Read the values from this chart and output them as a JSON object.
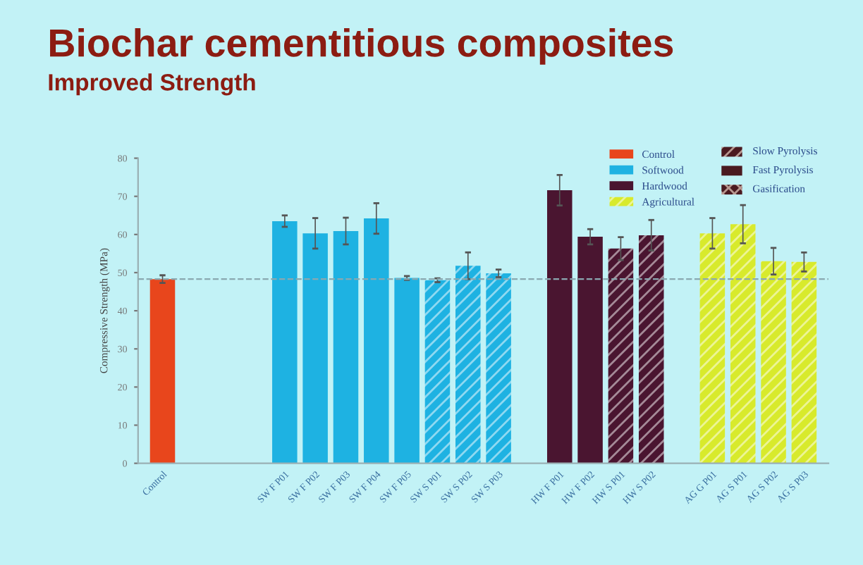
{
  "chart_data": {
    "type": "bar",
    "title": "Biochar cementitious composites",
    "subtitle": "Improved Strength",
    "ylabel": "Compressive Strength (MPa)",
    "categories": [
      "Control",
      null,
      null,
      null,
      "SW F P01",
      "SW F P02",
      "SW F P03",
      "SW F P04",
      "SW F P05",
      "SW S P01",
      "SW S P02",
      "SW S P03",
      null,
      "HW F P01",
      "HW F P02",
      "HW S P01",
      "HW S P02",
      null,
      "AG G P01",
      "AG S P01",
      "AG S P02",
      "AG S P03"
    ],
    "series": [
      {
        "name": "Control",
        "color": "#e8461c",
        "values": [
          48.3,
          null,
          null,
          null,
          null,
          null,
          null,
          null,
          null,
          null,
          null,
          null,
          null,
          null,
          null,
          null,
          null,
          null,
          null,
          null,
          null,
          null
        ],
        "errors": [
          1,
          null,
          null,
          null,
          null,
          null,
          null,
          null,
          null,
          null,
          null,
          null,
          null,
          null,
          null,
          null,
          null,
          null,
          null,
          null,
          null,
          null
        ]
      },
      {
        "name": "Softwood",
        "color": "#1eb2e2",
        "values": [
          null,
          null,
          null,
          null,
          63.5,
          60.3,
          60.9,
          64.2,
          48.6,
          null,
          null,
          null,
          null,
          null,
          null,
          null,
          null,
          null,
          null,
          null,
          null,
          null
        ],
        "errors": [
          null,
          null,
          null,
          null,
          1.5,
          4,
          3.5,
          4,
          0.5,
          null,
          null,
          null,
          null,
          null,
          null,
          null,
          null,
          null,
          null,
          null,
          null,
          null
        ]
      },
      {
        "color": "#1eb2e2",
        "line_style": "dashed",
        "values": [
          null,
          null,
          null,
          null,
          null,
          null,
          null,
          null,
          null,
          48.0,
          51.8,
          49.8,
          null,
          null,
          null,
          null,
          null,
          null,
          null,
          null,
          null,
          null
        ],
        "errors": [
          null,
          null,
          null,
          null,
          null,
          null,
          null,
          null,
          null,
          0.5,
          3.5,
          1,
          null,
          null,
          null,
          null,
          null,
          null,
          null,
          null,
          null,
          null
        ]
      },
      {
        "name": "Hardwood",
        "color": "#4a1530",
        "values": [
          null,
          null,
          null,
          null,
          null,
          null,
          null,
          null,
          null,
          null,
          null,
          null,
          null,
          71.6,
          59.4,
          null,
          null,
          null,
          null,
          null,
          null,
          null
        ],
        "errors": [
          null,
          null,
          null,
          null,
          null,
          null,
          null,
          null,
          null,
          null,
          null,
          null,
          null,
          4,
          2,
          null,
          null,
          null,
          null,
          null,
          null,
          null
        ]
      },
      {
        "color": "#4a1530",
        "line_style": "dashed",
        "values": [
          null,
          null,
          null,
          null,
          null,
          null,
          null,
          null,
          null,
          null,
          null,
          null,
          null,
          null,
          null,
          56.3,
          59.8,
          null,
          null,
          null,
          null,
          null
        ],
        "errors": [
          null,
          null,
          null,
          null,
          null,
          null,
          null,
          null,
          null,
          null,
          null,
          null,
          null,
          null,
          null,
          3,
          4,
          null,
          null,
          null,
          null,
          null
        ]
      },
      {
        "name": "Agricultural",
        "color": "#d8ea2c",
        "line_style": "dashed",
        "values": [
          null,
          null,
          null,
          null,
          null,
          null,
          null,
          null,
          null,
          null,
          null,
          null,
          null,
          null,
          null,
          null,
          null,
          null,
          60.3,
          62.7,
          53.0,
          52.8
        ],
        "errors": [
          null,
          null,
          null,
          null,
          null,
          null,
          null,
          null,
          null,
          null,
          null,
          null,
          null,
          null,
          null,
          null,
          null,
          null,
          4,
          5,
          3.5,
          2.5
        ]
      }
    ],
    "annotations": [
      "Slow Pyrolysis",
      "Fast Pyrolysis",
      "Gasification"
    ],
    "ref_lines": [
      {
        "axis": "y",
        "value": 48.3,
        "color": "#8aa8b0",
        "line_style": "dashed"
      }
    ],
    "ylim": [
      0,
      80
    ],
    "yticks": [
      0,
      10,
      20,
      30,
      40,
      50,
      60,
      70,
      80
    ],
    "grid": false,
    "legend": "top right"
  }
}
